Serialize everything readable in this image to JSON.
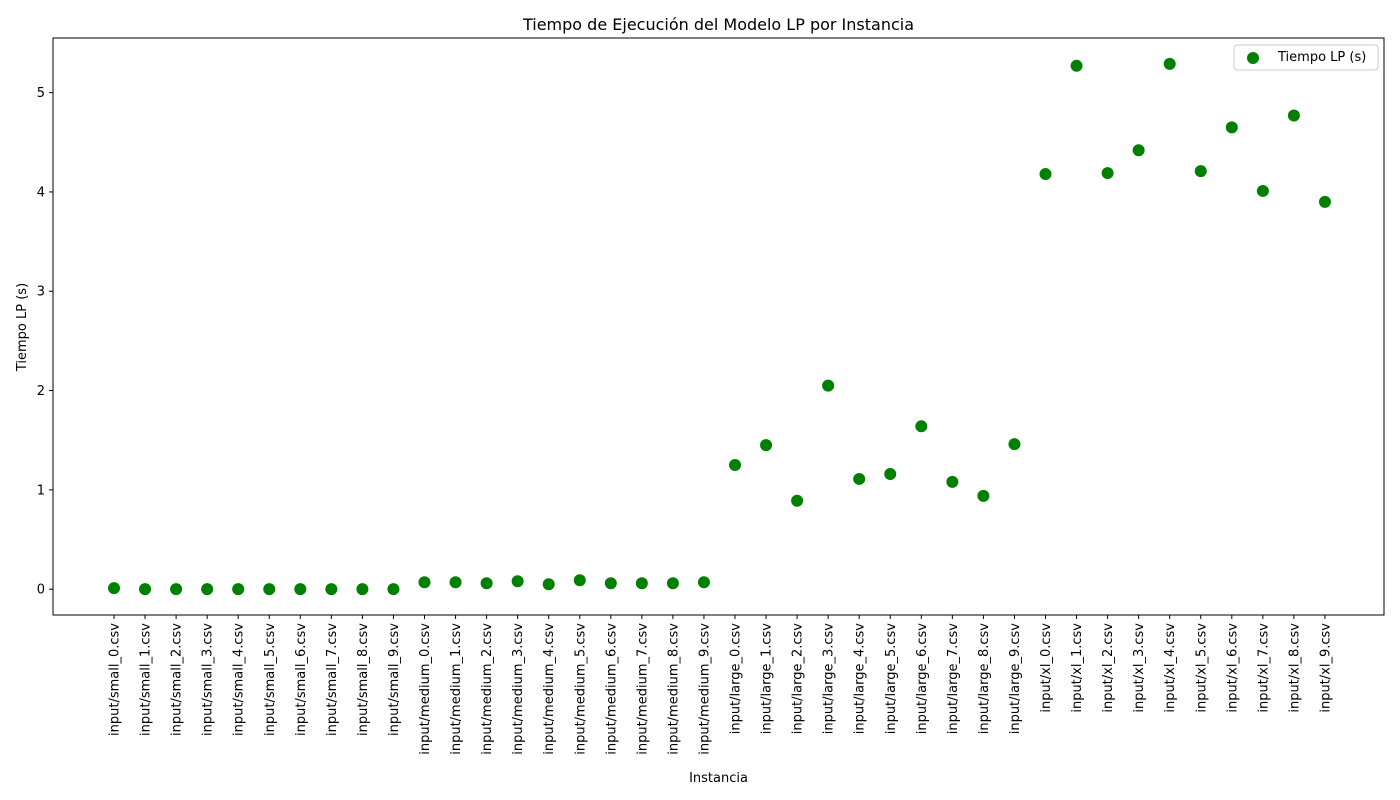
{
  "chart_data": {
    "type": "scatter",
    "title": "Tiempo de Ejecución del Modelo LP por Instancia",
    "xlabel": "Instancia",
    "ylabel": "Tiempo LP (s)",
    "ylim": [
      -0.26,
      5.55
    ],
    "yticks": [
      0,
      1,
      2,
      3,
      4,
      5
    ],
    "grid": false,
    "legend_position": "top-right",
    "categories": [
      "input/small_0.csv",
      "input/small_1.csv",
      "input/small_2.csv",
      "input/small_3.csv",
      "input/small_4.csv",
      "input/small_5.csv",
      "input/small_6.csv",
      "input/small_7.csv",
      "input/small_8.csv",
      "input/small_9.csv",
      "input/medium_0.csv",
      "input/medium_1.csv",
      "input/medium_2.csv",
      "input/medium_3.csv",
      "input/medium_4.csv",
      "input/medium_5.csv",
      "input/medium_6.csv",
      "input/medium_7.csv",
      "input/medium_8.csv",
      "input/medium_9.csv",
      "input/large_0.csv",
      "input/large_1.csv",
      "input/large_2.csv",
      "input/large_3.csv",
      "input/large_4.csv",
      "input/large_5.csv",
      "input/large_6.csv",
      "input/large_7.csv",
      "input/large_8.csv",
      "input/large_9.csv",
      "input/xl_0.csv",
      "input/xl_1.csv",
      "input/xl_2.csv",
      "input/xl_3.csv",
      "input/xl_4.csv",
      "input/xl_5.csv",
      "input/xl_6.csv",
      "input/xl_7.csv",
      "input/xl_8.csv",
      "input/xl_9.csv"
    ],
    "series": [
      {
        "name": "Tiempo LP (s)",
        "color": "#008000",
        "values": [
          0.01,
          0.0,
          0.0,
          0.0,
          0.0,
          0.0,
          0.0,
          0.0,
          0.0,
          0.0,
          0.07,
          0.07,
          0.06,
          0.08,
          0.05,
          0.09,
          0.06,
          0.06,
          0.06,
          0.07,
          1.25,
          1.45,
          0.89,
          2.05,
          1.11,
          1.16,
          1.64,
          1.08,
          0.94,
          1.46,
          4.18,
          5.27,
          4.19,
          4.42,
          5.29,
          4.21,
          4.65,
          4.01,
          4.77,
          3.9
        ]
      }
    ]
  }
}
